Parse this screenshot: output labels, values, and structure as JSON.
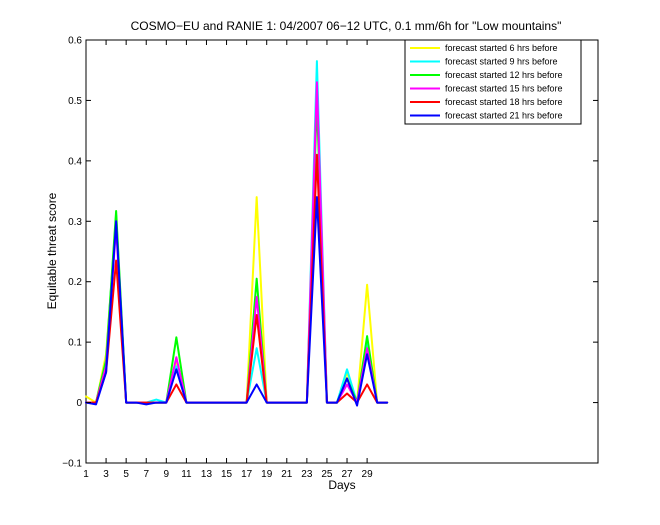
{
  "chart_data": {
    "type": "line",
    "title": "COSMO−EU and RANIE 1: 04/2007 06−12 UTC, 0.1 mm/6h for \"Low mountains\"",
    "xlabel": "Days",
    "ylabel": "Equitable threat score",
    "xlim": [
      1,
      52
    ],
    "ylim": [
      -0.1,
      0.6
    ],
    "x_ticks": [
      1,
      3,
      5,
      7,
      9,
      11,
      13,
      15,
      17,
      19,
      21,
      23,
      25,
      27,
      29
    ],
    "y_ticks": [
      -0.1,
      0,
      0.1,
      0.2,
      0.3,
      0.4,
      0.5,
      0.6
    ],
    "x_tick_labels": [
      "1",
      "3",
      "5",
      "7",
      "9",
      "11",
      "13",
      "15",
      "17",
      "19",
      "21",
      "23",
      "25",
      "27",
      "29"
    ],
    "y_tick_labels": [
      "−0.1",
      "0",
      "0.1",
      "0.2",
      "0.3",
      "0.4",
      "0.5",
      "0.6"
    ],
    "legend_position": "top-right",
    "grid": false,
    "x": [
      1,
      2,
      3,
      4,
      5,
      6,
      7,
      8,
      9,
      10,
      11,
      12,
      13,
      14,
      15,
      16,
      17,
      18,
      19,
      20,
      21,
      22,
      23,
      24,
      25,
      26,
      27,
      28,
      29,
      30,
      31
    ],
    "series": [
      {
        "name": "forecast started 6 hrs before",
        "color": "#ffff00",
        "values": [
          0.01,
          0.0,
          0.08,
          0.3,
          0.0,
          0.0,
          0.0,
          0.0,
          0.0,
          0.07,
          0.0,
          0.0,
          0.0,
          0.0,
          0.0,
          0.0,
          0.0,
          0.34,
          0.0,
          0.0,
          0.0,
          0.0,
          0.0,
          0.51,
          0.0,
          0.0,
          0.05,
          0.0,
          0.195,
          0.0,
          0.0
        ]
      },
      {
        "name": "forecast started 9 hrs before",
        "color": "#00ffff",
        "values": [
          0.0,
          0.0,
          0.07,
          0.31,
          0.0,
          0.0,
          0.0,
          0.005,
          0.0,
          0.06,
          0.0,
          0.0,
          0.0,
          0.0,
          0.0,
          0.0,
          0.0,
          0.09,
          0.0,
          0.0,
          0.0,
          0.0,
          0.0,
          0.565,
          0.0,
          0.0,
          0.055,
          0.0,
          0.1,
          0.0,
          0.0
        ]
      },
      {
        "name": "forecast started 12 hrs before",
        "color": "#00ff00",
        "values": [
          0.0,
          0.0,
          0.07,
          0.317,
          0.0,
          0.0,
          0.0,
          0.0,
          0.0,
          0.108,
          0.0,
          0.0,
          0.0,
          0.0,
          0.0,
          0.0,
          0.0,
          0.205,
          0.0,
          0.0,
          0.0,
          0.0,
          0.0,
          0.5,
          0.0,
          0.0,
          0.04,
          0.0,
          0.11,
          0.0,
          0.0
        ]
      },
      {
        "name": "forecast started 15 hrs before",
        "color": "#ff00ff",
        "values": [
          0.0,
          0.0,
          0.06,
          0.29,
          0.0,
          0.0,
          0.0,
          0.0,
          0.0,
          0.075,
          0.0,
          0.0,
          0.0,
          0.0,
          0.0,
          0.0,
          0.0,
          0.175,
          0.0,
          0.0,
          0.0,
          0.0,
          0.0,
          0.53,
          0.0,
          0.0,
          0.03,
          0.0,
          0.09,
          0.0,
          0.0
        ]
      },
      {
        "name": "forecast started 18 hrs before",
        "color": "#ff0000",
        "values": [
          0.0,
          0.0,
          0.05,
          0.235,
          0.0,
          0.0,
          0.0,
          0.0,
          0.0,
          0.03,
          0.0,
          0.0,
          0.0,
          0.0,
          0.0,
          0.0,
          0.0,
          0.145,
          0.0,
          0.0,
          0.0,
          0.0,
          0.0,
          0.41,
          0.0,
          0.0,
          0.015,
          0.0,
          0.03,
          0.0,
          0.0
        ]
      },
      {
        "name": "forecast started 21 hrs before",
        "color": "#0000ff",
        "values": [
          0.0,
          -0.003,
          0.05,
          0.3,
          0.0,
          0.0,
          -0.003,
          0.0,
          0.0,
          0.055,
          0.0,
          0.0,
          0.0,
          0.0,
          0.0,
          0.0,
          0.0,
          0.03,
          0.0,
          0.0,
          0.0,
          0.0,
          0.0,
          0.34,
          0.0,
          0.0,
          0.04,
          -0.005,
          0.08,
          0.0,
          0.0
        ]
      }
    ]
  }
}
